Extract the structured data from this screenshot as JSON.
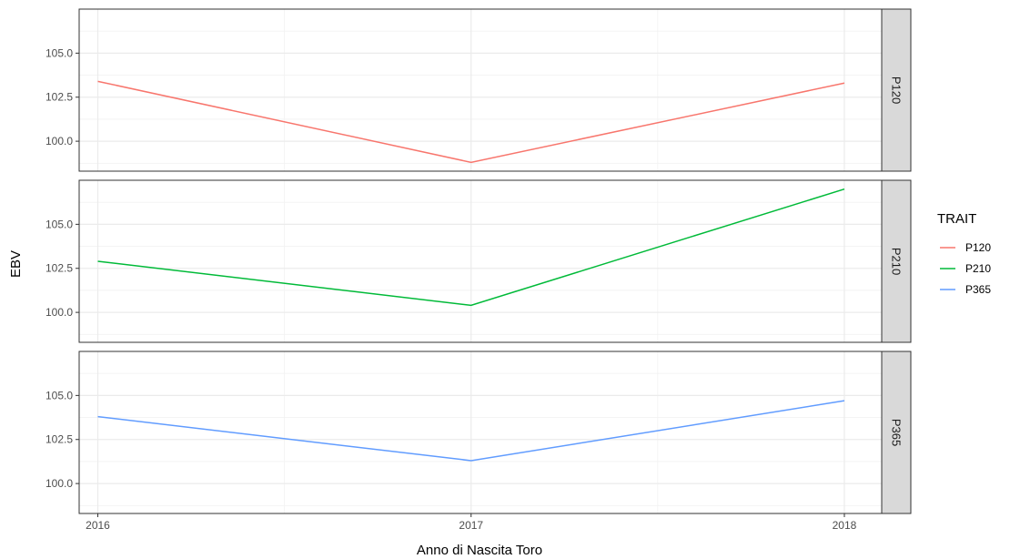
{
  "chart_data": {
    "type": "line",
    "facet_by": "TRAIT",
    "xlabel": "Anno di Nascita Toro",
    "ylabel": "EBV",
    "x": [
      2016,
      2017,
      2018
    ],
    "x_tick_labels": [
      "2016",
      "2017",
      "2018"
    ],
    "xlim": [
      2015.95,
      2018.1
    ],
    "ylim": [
      98.3,
      107.5
    ],
    "y_ticks": [
      100.0,
      102.5,
      105.0
    ],
    "y_tick_labels": [
      "100.0",
      "102.5",
      "105.0"
    ],
    "grid": true,
    "legend": {
      "title": "TRAIT",
      "position": "right",
      "entries": [
        "P120",
        "P210",
        "P365"
      ]
    },
    "series": [
      {
        "name": "P120",
        "color": "#F8766D",
        "values": [
          103.4,
          98.8,
          103.3
        ]
      },
      {
        "name": "P210",
        "color": "#00BA38",
        "values": [
          102.9,
          100.4,
          107.0
        ]
      },
      {
        "name": "P365",
        "color": "#619CFF",
        "values": [
          103.8,
          101.3,
          104.7
        ]
      }
    ]
  }
}
